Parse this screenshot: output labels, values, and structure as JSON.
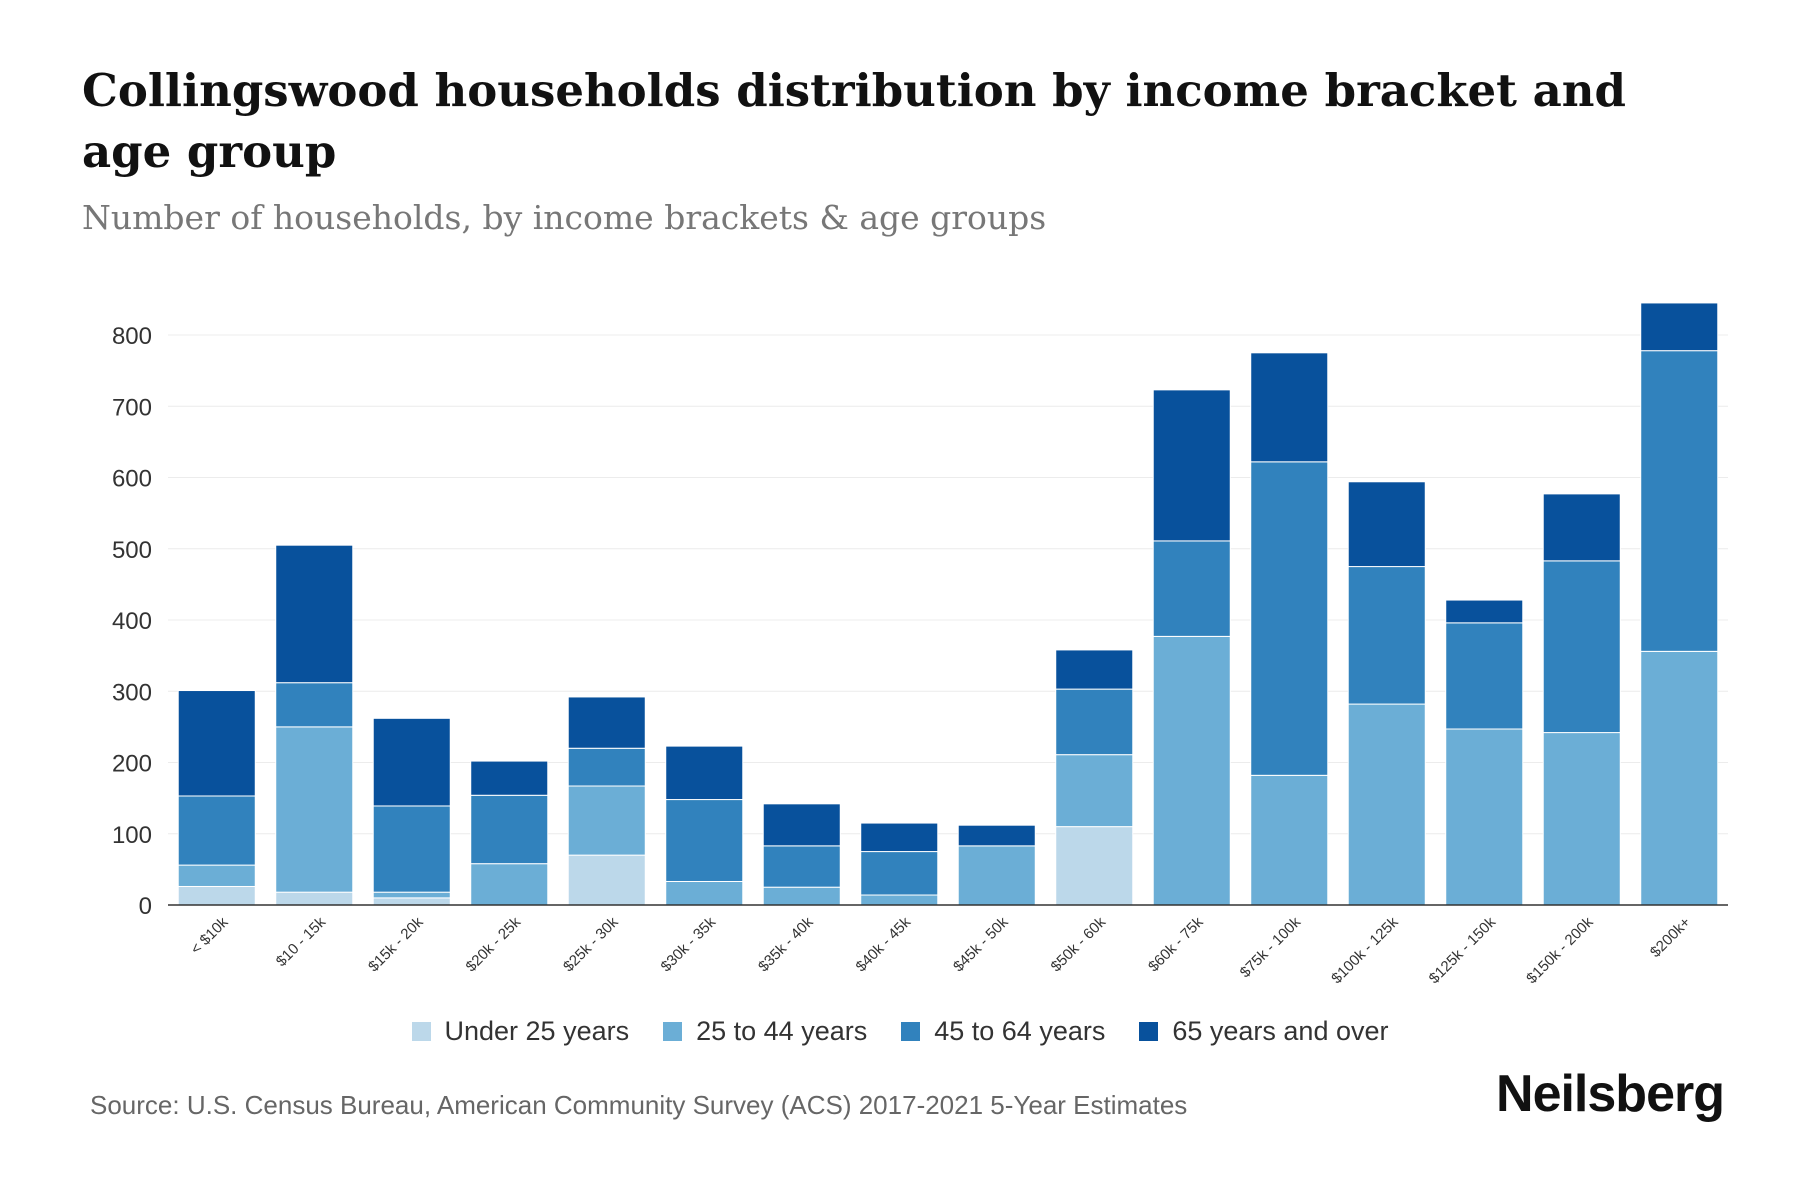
{
  "chart_data": {
    "type": "bar",
    "stacked": true,
    "title": "Collingswood households distribution by income bracket and age group",
    "subtitle": "Number of households, by income brackets & age groups",
    "xlabel": "",
    "ylabel": "",
    "ylim": [
      0,
      850
    ],
    "yticks": [
      0,
      100,
      200,
      300,
      400,
      500,
      600,
      700,
      800
    ],
    "grid": true,
    "legend_position": "bottom",
    "categories": [
      "< $10k",
      "$10 - 15k",
      "$15k - 20k",
      "$20k - 25k",
      "$25k - 30k",
      "$30k - 35k",
      "$35k - 40k",
      "$40k - 45k",
      "$45k - 50k",
      "$50k - 60k",
      "$60k - 75k",
      "$75k - 100k",
      "$100k - 125k",
      "$125k - 150k",
      "$150k - 200k",
      "$200k+"
    ],
    "series": [
      {
        "name": "Under 25 years",
        "color": "#bcd8ea",
        "values": [
          26,
          18,
          10,
          0,
          70,
          0,
          0,
          0,
          0,
          110,
          0,
          0,
          0,
          0,
          0,
          0
        ]
      },
      {
        "name": "25 to 44 years",
        "color": "#6baed6",
        "values": [
          30,
          232,
          8,
          58,
          97,
          33,
          25,
          14,
          83,
          101,
          377,
          182,
          282,
          247,
          242,
          356
        ]
      },
      {
        "name": "45 to 64 years",
        "color": "#3182bd",
        "values": [
          97,
          62,
          121,
          96,
          53,
          115,
          58,
          61,
          0,
          92,
          134,
          440,
          193,
          149,
          241,
          422
        ]
      },
      {
        "name": "65 years and over",
        "color": "#08519c",
        "values": [
          148,
          193,
          123,
          48,
          72,
          75,
          59,
          40,
          29,
          55,
          212,
          153,
          119,
          32,
          94,
          67
        ]
      }
    ]
  },
  "footer": {
    "source": "Source: U.S. Census Bureau, American Community Survey (ACS) 2017-2021 5-Year Estimates",
    "brand": "Neilsberg"
  }
}
